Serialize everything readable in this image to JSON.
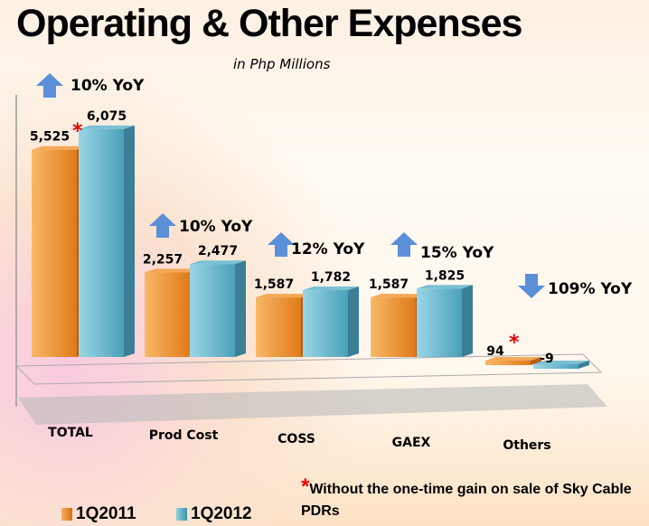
{
  "title": "Operating & Other Expenses",
  "subtitle": "in Php Millions",
  "footnote": {
    "marker": "*",
    "text": "Without the one-time gain on sale of Sky Cable PDRs"
  },
  "colors": {
    "1Q2011": "#f0953a",
    "1Q2012": "#5ab0c8",
    "arrow": "#5b8fd8",
    "asterisk": "#e00000"
  },
  "chart_data": {
    "type": "bar",
    "title": "Operating & Other Expenses",
    "subtitle": "in Php Millions",
    "categories": [
      "TOTAL",
      "Prod Cost",
      "COSS",
      "GAEX",
      "Others"
    ],
    "series": [
      {
        "name": "1Q2011",
        "values": [
          5525,
          2257,
          1587,
          1587,
          94
        ],
        "labels": [
          "5,525",
          "2,257",
          "1,587",
          "1,587",
          "94"
        ]
      },
      {
        "name": "1Q2012",
        "values": [
          6075,
          2477,
          1782,
          1825,
          -9
        ],
        "labels": [
          "6,075",
          "2,477",
          "1,782",
          "1,825",
          "-9"
        ]
      }
    ],
    "annotations": [
      {
        "category": "TOTAL",
        "direction": "up",
        "text": "10% YoY"
      },
      {
        "category": "Prod Cost",
        "direction": "up",
        "text": "10% YoY"
      },
      {
        "category": "COSS",
        "direction": "up",
        "text": "12% YoY"
      },
      {
        "category": "GAEX",
        "direction": "up",
        "text": "15% YoY"
      },
      {
        "category": "Others",
        "direction": "down",
        "text": "109% YoY"
      }
    ],
    "asterisk_on": [
      "TOTAL 1Q2011",
      "Others 1Q2011"
    ],
    "legend": "bottom-left",
    "style": "3d"
  }
}
